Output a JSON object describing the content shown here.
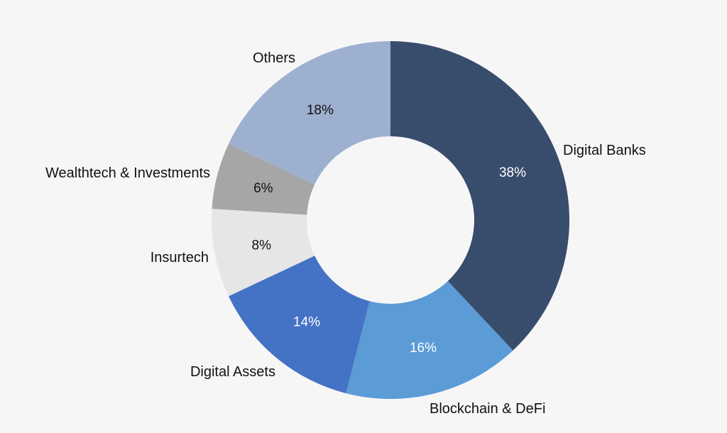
{
  "chart_data": {
    "type": "pie",
    "variant": "donut",
    "title": "",
    "start_angle_deg": 0,
    "direction": "clockwise",
    "slices": [
      {
        "label": "Digital Banks",
        "value": 38,
        "value_label": "38%",
        "color": "#384c6c",
        "text_color": "#ffffff"
      },
      {
        "label": "Blockchain & DeFi",
        "value": 16,
        "value_label": "16%",
        "color": "#5b9bd6",
        "text_color": "#ffffff"
      },
      {
        "label": "Digital Assets",
        "value": 14,
        "value_label": "14%",
        "color": "#4472c5",
        "text_color": "#ffffff"
      },
      {
        "label": "Insurtech",
        "value": 8,
        "value_label": "8%",
        "color": "#e6e6e6",
        "text_color": "#111111"
      },
      {
        "label": "Wealthtech & Investments",
        "value": 6,
        "value_label": "6%",
        "color": "#a6a6a6",
        "text_color": "#111111"
      },
      {
        "label": "Others",
        "value": 18,
        "value_label": "18%",
        "color": "#9db0cf",
        "text_color": "#111111"
      }
    ],
    "background": "#f6f6f7"
  }
}
